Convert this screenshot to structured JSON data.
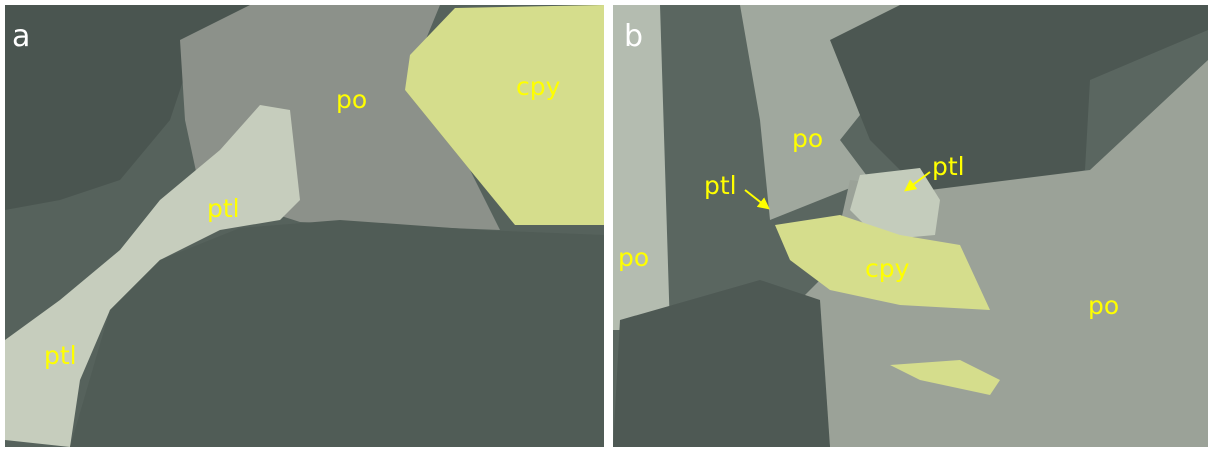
{
  "panels": [
    {
      "letter": "a",
      "labels": [
        "po",
        "cpy",
        "ptl",
        "ptl"
      ]
    },
    {
      "letter": "b",
      "labels": [
        "po",
        "ptl",
        "ptl",
        "po",
        "cpy",
        "po"
      ]
    }
  ]
}
